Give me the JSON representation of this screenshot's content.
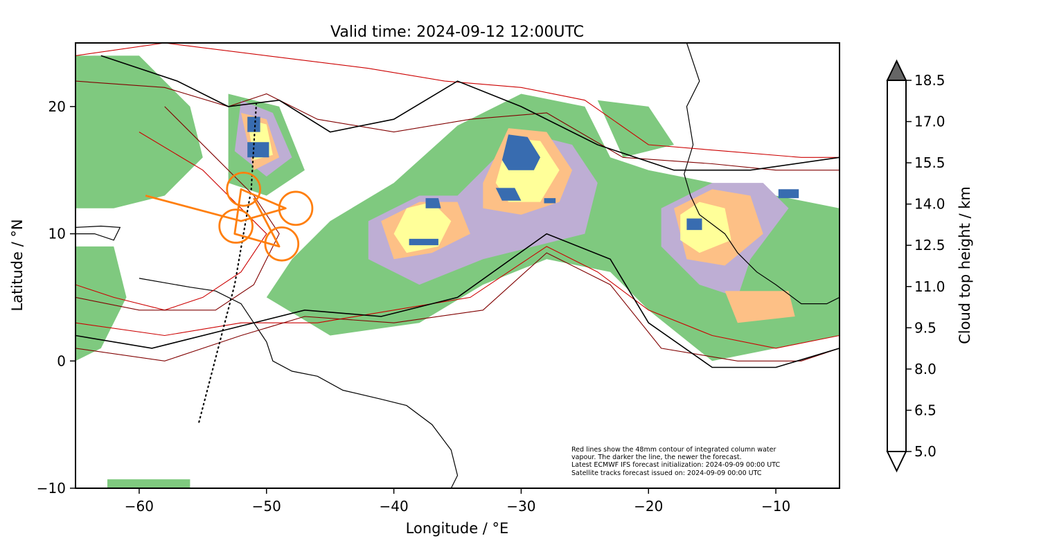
{
  "title": "Valid time: 2024-09-12 12:00UTC",
  "axes": {
    "xlabel": "Longitude / °E",
    "ylabel": "Latitude / °N",
    "xlim": [
      -65,
      -5
    ],
    "ylim": [
      -10,
      25
    ],
    "xticks": [
      -60,
      -50,
      -40,
      -30,
      -20,
      -10
    ],
    "yticks": [
      -10,
      0,
      10,
      20
    ],
    "xtick_labels": [
      "−60",
      "−50",
      "−40",
      "−30",
      "−20",
      "−10"
    ],
    "ytick_labels": [
      "−10",
      "0",
      "10",
      "20"
    ]
  },
  "colorbar": {
    "label": "Cloud top height / km",
    "levels": [
      5.0,
      6.5,
      8.0,
      9.5,
      11.0,
      12.5,
      14.0,
      15.5,
      17.0,
      18.5
    ],
    "level_labels": [
      "5.0",
      "6.5",
      "8.0",
      "9.5",
      "11.0",
      "12.5",
      "14.0",
      "15.5",
      "17.0",
      "18.5"
    ],
    "colors": [
      "#ffffff",
      "#7fc97f",
      "#beaed4",
      "#fdc086",
      "#ffff99",
      "#386cb0",
      "#f0027f",
      "#bf5b17",
      "#666666"
    ],
    "extend": "both"
  },
  "annotation": [
    "Red lines show the 48mm contour of integrated column water",
    "vapour. The darker the line, the newer the forecast.",
    "Latest ECMWF IFS forecast initialization: 2024-09-09 00:00 UTC",
    "Satellite tracks forecast issued on: 2024-09-09 00:00 UTC"
  ],
  "flight_track": {
    "color": "#ff7f0e",
    "path": [
      [
        -59.5,
        13.0
      ],
      [
        -52.0,
        11.0
      ],
      [
        -48.5,
        12.0
      ],
      [
        -52.0,
        13.5
      ],
      [
        -52.5,
        10.0
      ],
      [
        -49.0,
        9.0
      ],
      [
        -51.0,
        12.8
      ]
    ],
    "circles": [
      {
        "lon": -51.8,
        "lat": 13.5,
        "r_deg": 1.3
      },
      {
        "lon": -47.7,
        "lat": 12.0,
        "r_deg": 1.3
      },
      {
        "lon": -52.4,
        "lat": 10.6,
        "r_deg": 1.3
      },
      {
        "lon": -48.8,
        "lat": 9.2,
        "r_deg": 1.3
      }
    ]
  },
  "satellite_track": [
    [
      -55.3,
      -4.8
    ],
    [
      -52.5,
      6.0
    ],
    [
      -51.2,
      13.5
    ],
    [
      -50.8,
      20.2
    ]
  ],
  "cloud_regions": [
    {
      "level": 1,
      "poly": [
        [
          -45,
          11
        ],
        [
          -40,
          14
        ],
        [
          -35,
          18.5
        ],
        [
          -30,
          21
        ],
        [
          -25,
          20
        ],
        [
          -23,
          16
        ],
        [
          -20,
          15
        ],
        [
          -15,
          14
        ],
        [
          -10,
          13
        ],
        [
          -5,
          12
        ],
        [
          -5,
          2
        ],
        [
          -10,
          1
        ],
        [
          -15,
          0
        ],
        [
          -20,
          4
        ],
        [
          -23,
          7
        ],
        [
          -28,
          8
        ],
        [
          -33,
          6
        ],
        [
          -38,
          3
        ],
        [
          -45,
          2
        ],
        [
          -50,
          5
        ],
        [
          -48,
          8
        ]
      ]
    },
    {
      "level": 1,
      "poly": [
        [
          -65,
          24
        ],
        [
          -60,
          24
        ],
        [
          -56,
          20
        ],
        [
          -55,
          16
        ],
        [
          -58,
          13
        ],
        [
          -62,
          12
        ],
        [
          -65,
          12
        ]
      ]
    },
    {
      "level": 1,
      "poly": [
        [
          -65,
          9
        ],
        [
          -62,
          9
        ],
        [
          -61,
          5
        ],
        [
          -63,
          1
        ],
        [
          -65,
          0
        ]
      ]
    },
    {
      "level": 1,
      "poly": [
        [
          -53,
          21
        ],
        [
          -49,
          20
        ],
        [
          -47,
          15
        ],
        [
          -50,
          13
        ],
        [
          -53,
          14
        ]
      ]
    },
    {
      "level": 2,
      "poly": [
        [
          -42,
          11
        ],
        [
          -38,
          13
        ],
        [
          -35,
          13
        ],
        [
          -33,
          15
        ],
        [
          -30,
          18
        ],
        [
          -26,
          17
        ],
        [
          -24,
          14
        ],
        [
          -25,
          10
        ],
        [
          -29,
          9
        ],
        [
          -33,
          8
        ],
        [
          -38,
          6
        ],
        [
          -42,
          8
        ]
      ]
    },
    {
      "level": 2,
      "poly": [
        [
          -19,
          12
        ],
        [
          -15,
          14
        ],
        [
          -11,
          14
        ],
        [
          -9,
          12
        ],
        [
          -12,
          8
        ],
        [
          -13,
          5
        ],
        [
          -16,
          6
        ],
        [
          -19,
          9
        ]
      ]
    },
    {
      "level": 2,
      "poly": [
        [
          -52,
          20.5
        ],
        [
          -49.5,
          19.5
        ],
        [
          -48,
          16
        ],
        [
          -50,
          14.5
        ],
        [
          -52.5,
          16.5
        ]
      ]
    },
    {
      "level": 3,
      "poly": [
        [
          -41,
          11
        ],
        [
          -38,
          12.5
        ],
        [
          -35,
          12.5
        ],
        [
          -34,
          10
        ],
        [
          -37,
          8.5
        ],
        [
          -40,
          8
        ]
      ]
    },
    {
      "level": 3,
      "poly": [
        [
          -33,
          14
        ],
        [
          -31,
          18.3
        ],
        [
          -28,
          18
        ],
        [
          -26,
          15
        ],
        [
          -27,
          12.5
        ],
        [
          -30,
          11.5
        ],
        [
          -33,
          12
        ]
      ]
    },
    {
      "level": 3,
      "poly": [
        [
          -18,
          12
        ],
        [
          -15,
          13.5
        ],
        [
          -12,
          13
        ],
        [
          -11,
          10
        ],
        [
          -14,
          7.5
        ],
        [
          -17,
          8
        ]
      ]
    },
    {
      "level": 3,
      "poly": [
        [
          -14,
          5.5
        ],
        [
          -9,
          5.5
        ],
        [
          -8.5,
          3.5
        ],
        [
          -13,
          3
        ]
      ]
    },
    {
      "level": 3,
      "poly": [
        [
          -52,
          19.5
        ],
        [
          -50,
          19
        ],
        [
          -49,
          16
        ],
        [
          -51,
          15
        ]
      ]
    },
    {
      "level": 4,
      "poly": [
        [
          -39,
          12
        ],
        [
          -37,
          12.5
        ],
        [
          -35.5,
          11
        ],
        [
          -36.5,
          9
        ],
        [
          -39,
          8.5
        ],
        [
          -40,
          10
        ]
      ]
    },
    {
      "level": 4,
      "poly": [
        [
          -32,
          14
        ],
        [
          -31,
          17.5
        ],
        [
          -28.5,
          17.3
        ],
        [
          -27,
          15
        ],
        [
          -28.5,
          12.5
        ],
        [
          -31,
          12.5
        ]
      ]
    },
    {
      "level": 4,
      "poly": [
        [
          -17.5,
          11.5
        ],
        [
          -16,
          12.5
        ],
        [
          -14,
          12
        ],
        [
          -13.5,
          9.5
        ],
        [
          -16,
          8.5
        ],
        [
          -17.5,
          9.5
        ]
      ]
    },
    {
      "level": 4,
      "poly": [
        [
          -51.5,
          19
        ],
        [
          -50,
          18.6
        ],
        [
          -49.5,
          16.2
        ],
        [
          -51,
          15.8
        ]
      ]
    },
    {
      "level": 5,
      "poly": [
        [
          -31.5,
          15.8
        ],
        [
          -31,
          17.8
        ],
        [
          -29.5,
          17.6
        ],
        [
          -28.5,
          16
        ],
        [
          -29,
          15
        ],
        [
          -31,
          15
        ]
      ]
    },
    {
      "level": 5,
      "poly": [
        [
          -32,
          13.6
        ],
        [
          -30.5,
          13.6
        ],
        [
          -30,
          12.6
        ],
        [
          -31.5,
          12.6
        ]
      ]
    },
    {
      "level": 5,
      "poly": [
        [
          -37.5,
          12.8
        ],
        [
          -36.5,
          12.8
        ],
        [
          -36.3,
          12
        ],
        [
          -37.5,
          12
        ]
      ]
    },
    {
      "level": 5,
      "poly": [
        [
          -38.8,
          9.6
        ],
        [
          -36.5,
          9.6
        ],
        [
          -36.5,
          9.1
        ],
        [
          -38.8,
          9.1
        ]
      ]
    },
    {
      "level": 5,
      "poly": [
        [
          -51.5,
          19.2
        ],
        [
          -50.5,
          19.2
        ],
        [
          -50.5,
          18.0
        ],
        [
          -51.5,
          18.0
        ]
      ]
    },
    {
      "level": 5,
      "poly": [
        [
          -51.5,
          17.2
        ],
        [
          -49.8,
          17.2
        ],
        [
          -49.8,
          16.0
        ],
        [
          -51.5,
          16.0
        ]
      ]
    },
    {
      "level": 5,
      "poly": [
        [
          -17,
          11.2
        ],
        [
          -15.8,
          11.2
        ],
        [
          -15.8,
          10.3
        ],
        [
          -17,
          10.3
        ]
      ]
    },
    {
      "level": 5,
      "poly": [
        [
          -9.8,
          13.5
        ],
        [
          -8.2,
          13.5
        ],
        [
          -8.2,
          12.8
        ],
        [
          -9.8,
          12.8
        ]
      ]
    },
    {
      "level": 5,
      "poly": [
        [
          -28.2,
          12.8
        ],
        [
          -27.3,
          12.8
        ],
        [
          -27.3,
          12.4
        ],
        [
          -28.2,
          12.4
        ]
      ]
    },
    {
      "level": 1,
      "poly": [
        [
          -62.5,
          -9.3
        ],
        [
          -56,
          -9.3
        ],
        [
          -56,
          -10
        ],
        [
          -62.5,
          -10
        ]
      ]
    },
    {
      "level": 1,
      "poly": [
        [
          -24,
          20.5
        ],
        [
          -20,
          20
        ],
        [
          -18,
          17
        ],
        [
          -22,
          16
        ]
      ]
    }
  ],
  "iwv_contours": [
    {
      "shade": "#cc0000",
      "path": [
        [
          -65,
          24
        ],
        [
          -58,
          25
        ],
        [
          -50,
          24
        ],
        [
          -42,
          23
        ],
        [
          -36,
          22
        ],
        [
          -30,
          21.5
        ],
        [
          -25,
          20.5
        ],
        [
          -20,
          17
        ],
        [
          -14,
          16.5
        ],
        [
          -8,
          16
        ],
        [
          -5,
          16
        ]
      ]
    },
    {
      "shade": "#800000",
      "path": [
        [
          -65,
          22
        ],
        [
          -58,
          21.5
        ],
        [
          -53,
          20
        ],
        [
          -50,
          21
        ],
        [
          -46,
          19
        ],
        [
          -40,
          18
        ],
        [
          -34,
          19
        ],
        [
          -28,
          19.5
        ],
        [
          -22,
          16
        ],
        [
          -15,
          15.5
        ],
        [
          -10,
          15
        ],
        [
          -5,
          15
        ]
      ]
    },
    {
      "shade": "#000000",
      "path": [
        [
          -63,
          24
        ],
        [
          -57,
          22
        ],
        [
          -53,
          20
        ],
        [
          -49,
          20.5
        ],
        [
          -45,
          18
        ],
        [
          -40,
          19
        ],
        [
          -35,
          22
        ],
        [
          -30,
          20
        ],
        [
          -24,
          17
        ],
        [
          -18,
          15
        ],
        [
          -12,
          15
        ],
        [
          -5,
          16
        ]
      ]
    },
    {
      "shade": "#cc0000",
      "path": [
        [
          -65,
          3
        ],
        [
          -58,
          2
        ],
        [
          -52,
          3
        ],
        [
          -46,
          3
        ],
        [
          -40,
          4
        ],
        [
          -34,
          5
        ],
        [
          -28,
          9
        ],
        [
          -24,
          7
        ],
        [
          -20,
          4
        ],
        [
          -15,
          2
        ],
        [
          -10,
          1
        ],
        [
          -5,
          2
        ]
      ]
    },
    {
      "shade": "#800000",
      "path": [
        [
          -65,
          1
        ],
        [
          -58,
          0
        ],
        [
          -52,
          2
        ],
        [
          -47,
          3.5
        ],
        [
          -40,
          3
        ],
        [
          -33,
          4
        ],
        [
          -28,
          8.5
        ],
        [
          -23,
          6
        ],
        [
          -19,
          1
        ],
        [
          -13,
          0
        ],
        [
          -8,
          0
        ],
        [
          -5,
          1
        ]
      ]
    },
    {
      "shade": "#000000",
      "path": [
        [
          -65,
          2
        ],
        [
          -59,
          1
        ],
        [
          -53,
          2.5
        ],
        [
          -47,
          4
        ],
        [
          -41,
          3.5
        ],
        [
          -35,
          5
        ],
        [
          -28,
          10
        ],
        [
          -23,
          8
        ],
        [
          -20,
          3
        ],
        [
          -15,
          -0.5
        ],
        [
          -10,
          -0.5
        ],
        [
          -5,
          1
        ]
      ]
    },
    {
      "shade": "#cc0000",
      "path": [
        [
          -60,
          18
        ],
        [
          -55,
          15
        ],
        [
          -52,
          12
        ],
        [
          -50,
          10
        ],
        [
          -52,
          7
        ],
        [
          -55,
          5
        ],
        [
          -58,
          4
        ],
        [
          -62,
          5
        ],
        [
          -65,
          6
        ]
      ]
    },
    {
      "shade": "#800000",
      "path": [
        [
          -58,
          20
        ],
        [
          -54,
          16
        ],
        [
          -51,
          13
        ],
        [
          -49,
          10
        ],
        [
          -51,
          6
        ],
        [
          -54,
          4
        ],
        [
          -60,
          4
        ],
        [
          -65,
          5
        ]
      ]
    }
  ],
  "coastlines": [
    {
      "name": "south-america",
      "path": [
        [
          -60,
          6.5
        ],
        [
          -56,
          5.8
        ],
        [
          -54,
          5.5
        ],
        [
          -52,
          4.5
        ],
        [
          -51,
          3
        ],
        [
          -50,
          1.5
        ],
        [
          -49.5,
          0
        ],
        [
          -48,
          -0.8
        ],
        [
          -46,
          -1.2
        ],
        [
          -44,
          -2.3
        ],
        [
          -41,
          -3
        ],
        [
          -39,
          -3.5
        ],
        [
          -37,
          -5
        ],
        [
          -35.5,
          -7
        ],
        [
          -35,
          -9
        ],
        [
          -35.5,
          -10
        ]
      ]
    },
    {
      "name": "africa",
      "path": [
        [
          -17,
          25
        ],
        [
          -16,
          22
        ],
        [
          -17,
          20
        ],
        [
          -16.5,
          17
        ],
        [
          -17.2,
          14.7
        ],
        [
          -16.7,
          13
        ],
        [
          -16,
          11.5
        ],
        [
          -14,
          10
        ],
        [
          -13,
          8.5
        ],
        [
          -11.5,
          7
        ],
        [
          -10,
          6
        ],
        [
          -8,
          4.5
        ],
        [
          -6,
          4.5
        ],
        [
          -5,
          5
        ]
      ]
    },
    {
      "name": "caribbean",
      "path": [
        [
          -65,
          10.5
        ],
        [
          -63,
          10.6
        ],
        [
          -61.5,
          10.5
        ],
        [
          -62,
          9.5
        ],
        [
          -63.5,
          10
        ],
        [
          -65,
          10
        ]
      ]
    }
  ]
}
